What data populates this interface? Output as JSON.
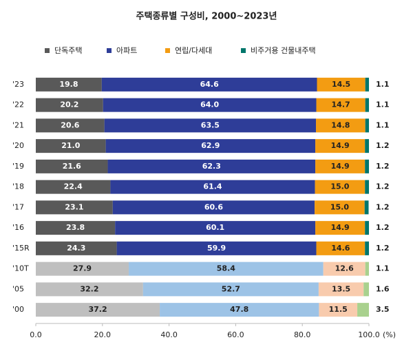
{
  "chart_data": {
    "type": "stacked-barh",
    "title": "주택종류별 구성비, 2000~2023년",
    "categories": [
      "'23",
      "'22",
      "'21",
      "'20",
      "'19",
      "'18",
      "'17",
      "'16",
      "'15R",
      "'10T",
      "'05",
      "'00"
    ],
    "series": [
      {
        "name": "단독주택",
        "color": "#595959",
        "point_colors": [
          "#595959",
          "#595959",
          "#595959",
          "#595959",
          "#595959",
          "#595959",
          "#595959",
          "#595959",
          "#595959",
          "#bfbfbf",
          "#bfbfbf",
          "#bfbfbf"
        ],
        "values": [
          19.8,
          20.2,
          20.6,
          21.0,
          21.6,
          22.4,
          23.1,
          23.8,
          24.3,
          27.9,
          32.2,
          37.2
        ],
        "value_labels": [
          "19.8",
          "20.2",
          "20.6",
          "21.0",
          "21.6",
          "22.4",
          "23.1",
          "23.8",
          "24.3",
          "27.9",
          "32.2",
          "37.2"
        ]
      },
      {
        "name": "아파트",
        "color": "#2e3d98",
        "point_colors": [
          "#2e3d98",
          "#2e3d98",
          "#2e3d98",
          "#2e3d98",
          "#2e3d98",
          "#2e3d98",
          "#2e3d98",
          "#2e3d98",
          "#2e3d98",
          "#9dc3e6",
          "#9dc3e6",
          "#9dc3e6"
        ],
        "values": [
          64.6,
          64.0,
          63.5,
          62.9,
          62.3,
          61.4,
          60.6,
          60.1,
          59.9,
          58.4,
          52.7,
          47.8
        ],
        "value_labels": [
          "64.6",
          "64.0",
          "63.5",
          "62.9",
          "62.3",
          "61.4",
          "60.6",
          "60.1",
          "59.9",
          "58.4",
          "52.7",
          "47.8"
        ]
      },
      {
        "name": "연립/다세대",
        "color": "#f39c12",
        "point_colors": [
          "#f39c12",
          "#f39c12",
          "#f39c12",
          "#f39c12",
          "#f39c12",
          "#f39c12",
          "#f39c12",
          "#f39c12",
          "#f39c12",
          "#f8cbad",
          "#f8cbad",
          "#f8cbad"
        ],
        "values": [
          14.5,
          14.7,
          14.8,
          14.9,
          14.9,
          15.0,
          15.0,
          14.9,
          14.6,
          12.6,
          13.5,
          11.5
        ],
        "value_labels": [
          "14.5",
          "14.7",
          "14.8",
          "14.9",
          "14.9",
          "15.0",
          "15.0",
          "14.9",
          "14.6",
          "12.6",
          "13.5",
          "11.5"
        ]
      },
      {
        "name": "비주거용 건물내주택",
        "color": "#00766b",
        "point_colors": [
          "#00766b",
          "#00766b",
          "#00766b",
          "#00766b",
          "#00766b",
          "#00766b",
          "#00766b",
          "#00766b",
          "#00766b",
          "#a9d18e",
          "#a9d18e",
          "#a9d18e"
        ],
        "values": [
          1.1,
          1.1,
          1.1,
          1.2,
          1.2,
          1.2,
          1.2,
          1.2,
          1.2,
          1.1,
          1.6,
          3.5
        ],
        "value_labels": [
          "1.1",
          "1.1",
          "1.1",
          "1.2",
          "1.2",
          "1.2",
          "1.2",
          "1.2",
          "1.2",
          "1.1",
          "1.6",
          "3.5"
        ],
        "labels_outside": true
      }
    ],
    "xlim": [
      0,
      100
    ],
    "xticks": [
      {
        "value": 0,
        "label": "0.0"
      },
      {
        "value": 20,
        "label": "20.0"
      },
      {
        "value": 40,
        "label": "40.0"
      },
      {
        "value": 60,
        "label": "60.0"
      },
      {
        "value": 80,
        "label": "80.0"
      },
      {
        "value": 100,
        "label": "100.0"
      }
    ],
    "x_unit": "(%)",
    "grid": false,
    "legend": "top"
  }
}
